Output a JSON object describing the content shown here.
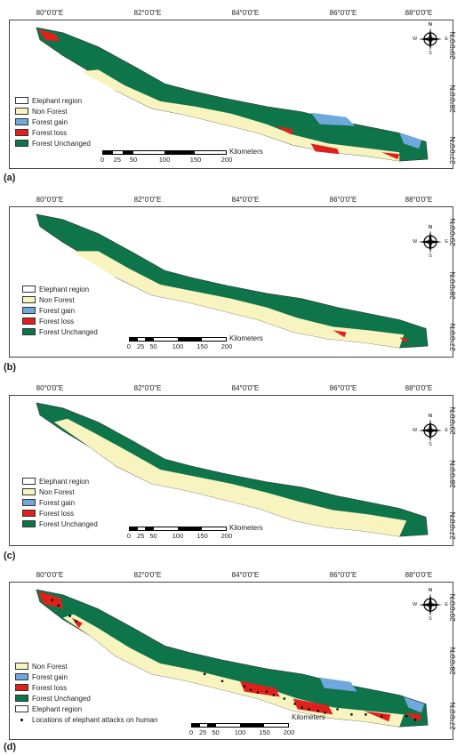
{
  "colors": {
    "non_forest": "#f8f4bf",
    "forest_gain": "#6fa8dc",
    "forest_loss": "#e0201b",
    "forest_unchanged": "#0e7449",
    "elephant_region": "#ffffff"
  },
  "longitude_labels": [
    "80°0'0\"E",
    "82°0'0\"E",
    "84°0'0\"E",
    "86°0'0\"E",
    "88°0'0\"E"
  ],
  "latitude_labels": [
    "29°0'0\"N",
    "28°0'0\"N",
    "27°0'0\"N"
  ],
  "compass": {
    "n": "N",
    "s": "S",
    "w": "W",
    "e": "E"
  },
  "scale": {
    "ticks": [
      "0",
      "25",
      "50",
      "100",
      "150",
      "200"
    ],
    "unit": "Kilometers"
  },
  "panels": [
    {
      "letter": "(a)",
      "legend": [
        "Elephant region",
        "Non Forest",
        "Forest gain",
        "Forest loss",
        "Forest Unchanged"
      ]
    },
    {
      "letter": "(b)",
      "legend": [
        "Elephant region",
        "Non Forest",
        "Forest gain",
        "Forest loss",
        "Forest Unchanged"
      ]
    },
    {
      "letter": "(c)",
      "legend": [
        "Elephant region",
        "Non Forest",
        "Forest gain",
        "Forest loss",
        "Forest Unchanged"
      ]
    },
    {
      "letter": "(d)",
      "legend": [
        "Non Forest",
        "Forest gain",
        "Forest loss",
        "Forest Unchanged",
        "Elephant region",
        "Locations of elephant attacks on human"
      ]
    }
  ]
}
